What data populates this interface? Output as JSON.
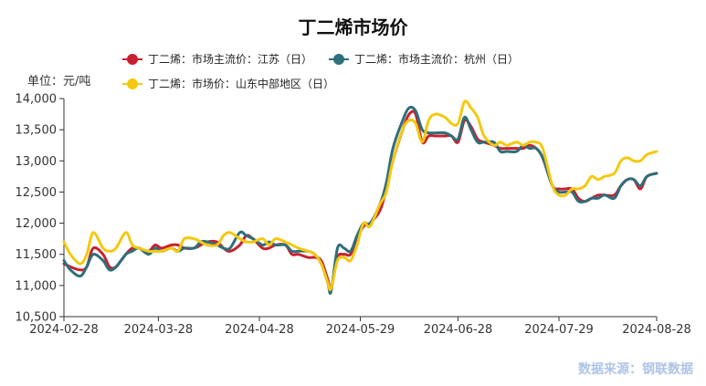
{
  "title": "丁二烯市场价",
  "unit_label": "单位：元/吨",
  "source": "数据来源：钢联数据",
  "chart_data": {
    "type": "line",
    "ylim": [
      10500,
      14000
    ],
    "yticks": [
      10500,
      11000,
      11500,
      12000,
      12500,
      13000,
      13500,
      14000
    ],
    "ytick_labels": [
      "10,500",
      "11,000",
      "11,500",
      "12,000",
      "12,500",
      "13,000",
      "13,500",
      "14,000"
    ],
    "x_start": "2024-02-28",
    "x_end": "2024-08-28",
    "xticks": [
      "2024-02-28",
      "2024-03-28",
      "2024-04-28",
      "2024-05-29",
      "2024-06-28",
      "2024-07-29",
      "2024-08-28"
    ],
    "grid": false,
    "legend": "top",
    "series": [
      {
        "name": "丁二烯：市场主流价：江苏（日）",
        "color": "#c8202f",
        "values": [
          [
            "2024-02-28",
            11350
          ],
          [
            "2024-03-01",
            11300
          ],
          [
            "2024-03-04",
            11250
          ],
          [
            "2024-03-06",
            11300
          ],
          [
            "2024-03-08",
            11600
          ],
          [
            "2024-03-11",
            11500
          ],
          [
            "2024-03-13",
            11300
          ],
          [
            "2024-03-15",
            11300
          ],
          [
            "2024-03-18",
            11500
          ],
          [
            "2024-03-20",
            11600
          ],
          [
            "2024-03-22",
            11600
          ],
          [
            "2024-03-25",
            11550
          ],
          [
            "2024-03-27",
            11650
          ],
          [
            "2024-03-29",
            11600
          ],
          [
            "2024-04-01",
            11650
          ],
          [
            "2024-04-03",
            11650
          ],
          [
            "2024-04-05",
            11600
          ],
          [
            "2024-04-08",
            11600
          ],
          [
            "2024-04-10",
            11650
          ],
          [
            "2024-04-12",
            11700
          ],
          [
            "2024-04-15",
            11700
          ],
          [
            "2024-04-17",
            11600
          ],
          [
            "2024-04-19",
            11550
          ],
          [
            "2024-04-22",
            11650
          ],
          [
            "2024-04-24",
            11800
          ],
          [
            "2024-04-26",
            11750
          ],
          [
            "2024-04-29",
            11600
          ],
          [
            "2024-05-01",
            11600
          ],
          [
            "2024-05-03",
            11650
          ],
          [
            "2024-05-06",
            11650
          ],
          [
            "2024-05-08",
            11500
          ],
          [
            "2024-05-10",
            11500
          ],
          [
            "2024-05-13",
            11450
          ],
          [
            "2024-05-15",
            11450
          ],
          [
            "2024-05-17",
            11400
          ],
          [
            "2024-05-19",
            11100
          ],
          [
            "2024-05-20",
            10950
          ],
          [
            "2024-05-22",
            11450
          ],
          [
            "2024-05-24",
            11500
          ],
          [
            "2024-05-26",
            11500
          ],
          [
            "2024-05-28",
            11750
          ],
          [
            "2024-05-30",
            11950
          ],
          [
            "2024-06-01",
            12000
          ],
          [
            "2024-06-04",
            12200
          ],
          [
            "2024-06-06",
            12550
          ],
          [
            "2024-06-08",
            13000
          ],
          [
            "2024-06-11",
            13500
          ],
          [
            "2024-06-13",
            13750
          ],
          [
            "2024-06-15",
            13750
          ],
          [
            "2024-06-17",
            13300
          ],
          [
            "2024-06-19",
            13400
          ],
          [
            "2024-06-21",
            13400
          ],
          [
            "2024-06-24",
            13400
          ],
          [
            "2024-06-26",
            13400
          ],
          [
            "2024-06-28",
            13300
          ],
          [
            "2024-06-30",
            13650
          ],
          [
            "2024-07-02",
            13550
          ],
          [
            "2024-07-04",
            13350
          ],
          [
            "2024-07-06",
            13300
          ],
          [
            "2024-07-09",
            13250
          ],
          [
            "2024-07-11",
            13200
          ],
          [
            "2024-07-13",
            13200
          ],
          [
            "2024-07-16",
            13200
          ],
          [
            "2024-07-18",
            13200
          ],
          [
            "2024-07-20",
            13250
          ],
          [
            "2024-07-22",
            13200
          ],
          [
            "2024-07-24",
            13050
          ],
          [
            "2024-07-27",
            12600
          ],
          [
            "2024-07-29",
            12550
          ],
          [
            "2024-07-31",
            12550
          ],
          [
            "2024-08-02",
            12550
          ],
          [
            "2024-08-04",
            12400
          ],
          [
            "2024-08-06",
            12350
          ],
          [
            "2024-08-08",
            12400
          ],
          [
            "2024-08-10",
            12450
          ],
          [
            "2024-08-12",
            12450
          ],
          [
            "2024-08-15",
            12450
          ],
          [
            "2024-08-17",
            12600
          ],
          [
            "2024-08-19",
            12700
          ],
          [
            "2024-08-21",
            12700
          ],
          [
            "2024-08-23",
            12550
          ],
          [
            "2024-08-25",
            12750
          ],
          [
            "2024-08-28",
            12800
          ]
        ]
      },
      {
        "name": "丁二烯：市场主流价：杭州（日）",
        "color": "#2e6f7a",
        "values": [
          [
            "2024-02-28",
            11400
          ],
          [
            "2024-03-01",
            11250
          ],
          [
            "2024-03-04",
            11150
          ],
          [
            "2024-03-06",
            11300
          ],
          [
            "2024-03-08",
            11500
          ],
          [
            "2024-03-11",
            11400
          ],
          [
            "2024-03-13",
            11250
          ],
          [
            "2024-03-15",
            11300
          ],
          [
            "2024-03-18",
            11500
          ],
          [
            "2024-03-20",
            11550
          ],
          [
            "2024-03-22",
            11600
          ],
          [
            "2024-03-25",
            11500
          ],
          [
            "2024-03-27",
            11600
          ],
          [
            "2024-03-29",
            11550
          ],
          [
            "2024-04-01",
            11600
          ],
          [
            "2024-04-03",
            11550
          ],
          [
            "2024-04-05",
            11600
          ],
          [
            "2024-04-08",
            11600
          ],
          [
            "2024-04-10",
            11700
          ],
          [
            "2024-04-12",
            11700
          ],
          [
            "2024-04-15",
            11650
          ],
          [
            "2024-04-17",
            11600
          ],
          [
            "2024-04-19",
            11600
          ],
          [
            "2024-04-22",
            11850
          ],
          [
            "2024-04-24",
            11800
          ],
          [
            "2024-04-26",
            11750
          ],
          [
            "2024-04-29",
            11650
          ],
          [
            "2024-05-01",
            11700
          ],
          [
            "2024-05-03",
            11650
          ],
          [
            "2024-05-06",
            11650
          ],
          [
            "2024-05-08",
            11550
          ],
          [
            "2024-05-10",
            11550
          ],
          [
            "2024-05-13",
            11550
          ],
          [
            "2024-05-15",
            11500
          ],
          [
            "2024-05-17",
            11350
          ],
          [
            "2024-05-19",
            11050
          ],
          [
            "2024-05-20",
            10900
          ],
          [
            "2024-05-22",
            11600
          ],
          [
            "2024-05-24",
            11600
          ],
          [
            "2024-05-26",
            11550
          ],
          [
            "2024-05-28",
            11800
          ],
          [
            "2024-05-30",
            12000
          ],
          [
            "2024-06-01",
            12000
          ],
          [
            "2024-06-04",
            12300
          ],
          [
            "2024-06-06",
            12650
          ],
          [
            "2024-06-08",
            13200
          ],
          [
            "2024-06-11",
            13650
          ],
          [
            "2024-06-13",
            13850
          ],
          [
            "2024-06-15",
            13800
          ],
          [
            "2024-06-17",
            13500
          ],
          [
            "2024-06-19",
            13450
          ],
          [
            "2024-06-21",
            13450
          ],
          [
            "2024-06-24",
            13450
          ],
          [
            "2024-06-26",
            13400
          ],
          [
            "2024-06-28",
            13350
          ],
          [
            "2024-06-30",
            13700
          ],
          [
            "2024-07-02",
            13500
          ],
          [
            "2024-07-04",
            13300
          ],
          [
            "2024-07-06",
            13300
          ],
          [
            "2024-07-09",
            13300
          ],
          [
            "2024-07-11",
            13150
          ],
          [
            "2024-07-13",
            13150
          ],
          [
            "2024-07-16",
            13150
          ],
          [
            "2024-07-18",
            13250
          ],
          [
            "2024-07-20",
            13200
          ],
          [
            "2024-07-22",
            13200
          ],
          [
            "2024-07-24",
            13050
          ],
          [
            "2024-07-27",
            12600
          ],
          [
            "2024-07-29",
            12500
          ],
          [
            "2024-07-31",
            12500
          ],
          [
            "2024-08-02",
            12500
          ],
          [
            "2024-08-04",
            12350
          ],
          [
            "2024-08-06",
            12350
          ],
          [
            "2024-08-08",
            12400
          ],
          [
            "2024-08-10",
            12400
          ],
          [
            "2024-08-12",
            12450
          ],
          [
            "2024-08-15",
            12400
          ],
          [
            "2024-08-17",
            12600
          ],
          [
            "2024-08-19",
            12700
          ],
          [
            "2024-08-21",
            12700
          ],
          [
            "2024-08-23",
            12600
          ],
          [
            "2024-08-25",
            12750
          ],
          [
            "2024-08-28",
            12800
          ]
        ]
      },
      {
        "name": "丁二烯：市场价：山东中部地区（日）",
        "color": "#f4c80f",
        "values": [
          [
            "2024-02-28",
            11700
          ],
          [
            "2024-03-01",
            11500
          ],
          [
            "2024-03-04",
            11350
          ],
          [
            "2024-03-06",
            11500
          ],
          [
            "2024-03-08",
            11850
          ],
          [
            "2024-03-11",
            11600
          ],
          [
            "2024-03-13",
            11550
          ],
          [
            "2024-03-15",
            11600
          ],
          [
            "2024-03-18",
            11850
          ],
          [
            "2024-03-20",
            11650
          ],
          [
            "2024-03-22",
            11600
          ],
          [
            "2024-03-25",
            11550
          ],
          [
            "2024-03-27",
            11550
          ],
          [
            "2024-03-29",
            11550
          ],
          [
            "2024-04-01",
            11600
          ],
          [
            "2024-04-03",
            11550
          ],
          [
            "2024-04-05",
            11750
          ],
          [
            "2024-04-08",
            11750
          ],
          [
            "2024-04-10",
            11700
          ],
          [
            "2024-04-12",
            11650
          ],
          [
            "2024-04-15",
            11650
          ],
          [
            "2024-04-17",
            11800
          ],
          [
            "2024-04-19",
            11850
          ],
          [
            "2024-04-22",
            11750
          ],
          [
            "2024-04-24",
            11700
          ],
          [
            "2024-04-26",
            11700
          ],
          [
            "2024-04-29",
            11750
          ],
          [
            "2024-05-01",
            11650
          ],
          [
            "2024-05-03",
            11750
          ],
          [
            "2024-05-06",
            11700
          ],
          [
            "2024-05-08",
            11650
          ],
          [
            "2024-05-10",
            11600
          ],
          [
            "2024-05-13",
            11550
          ],
          [
            "2024-05-15",
            11500
          ],
          [
            "2024-05-17",
            11350
          ],
          [
            "2024-05-19",
            11050
          ],
          [
            "2024-05-20",
            10950
          ],
          [
            "2024-05-22",
            11400
          ],
          [
            "2024-05-24",
            11450
          ],
          [
            "2024-05-26",
            11400
          ],
          [
            "2024-05-28",
            11650
          ],
          [
            "2024-05-30",
            12000
          ],
          [
            "2024-06-01",
            11950
          ],
          [
            "2024-06-04",
            12300
          ],
          [
            "2024-06-06",
            12500
          ],
          [
            "2024-06-08",
            13000
          ],
          [
            "2024-06-11",
            13500
          ],
          [
            "2024-06-13",
            13650
          ],
          [
            "2024-06-15",
            13600
          ],
          [
            "2024-06-17",
            13300
          ],
          [
            "2024-06-19",
            13650
          ],
          [
            "2024-06-21",
            13750
          ],
          [
            "2024-06-24",
            13700
          ],
          [
            "2024-06-26",
            13600
          ],
          [
            "2024-06-28",
            13600
          ],
          [
            "2024-06-30",
            13950
          ],
          [
            "2024-07-02",
            13850
          ],
          [
            "2024-07-04",
            13700
          ],
          [
            "2024-07-06",
            13400
          ],
          [
            "2024-07-09",
            13250
          ],
          [
            "2024-07-11",
            13300
          ],
          [
            "2024-07-13",
            13250
          ],
          [
            "2024-07-16",
            13300
          ],
          [
            "2024-07-18",
            13250
          ],
          [
            "2024-07-20",
            13300
          ],
          [
            "2024-07-22",
            13300
          ],
          [
            "2024-07-24",
            13200
          ],
          [
            "2024-07-27",
            12600
          ],
          [
            "2024-07-29",
            12450
          ],
          [
            "2024-07-31",
            12450
          ],
          [
            "2024-08-02",
            12550
          ],
          [
            "2024-08-04",
            12550
          ],
          [
            "2024-08-06",
            12600
          ],
          [
            "2024-08-08",
            12750
          ],
          [
            "2024-08-10",
            12700
          ],
          [
            "2024-08-12",
            12750
          ],
          [
            "2024-08-15",
            12800
          ],
          [
            "2024-08-17",
            13000
          ],
          [
            "2024-08-19",
            13050
          ],
          [
            "2024-08-21",
            13000
          ],
          [
            "2024-08-23",
            13000
          ],
          [
            "2024-08-25",
            13100
          ],
          [
            "2024-08-28",
            13150
          ]
        ]
      }
    ]
  }
}
